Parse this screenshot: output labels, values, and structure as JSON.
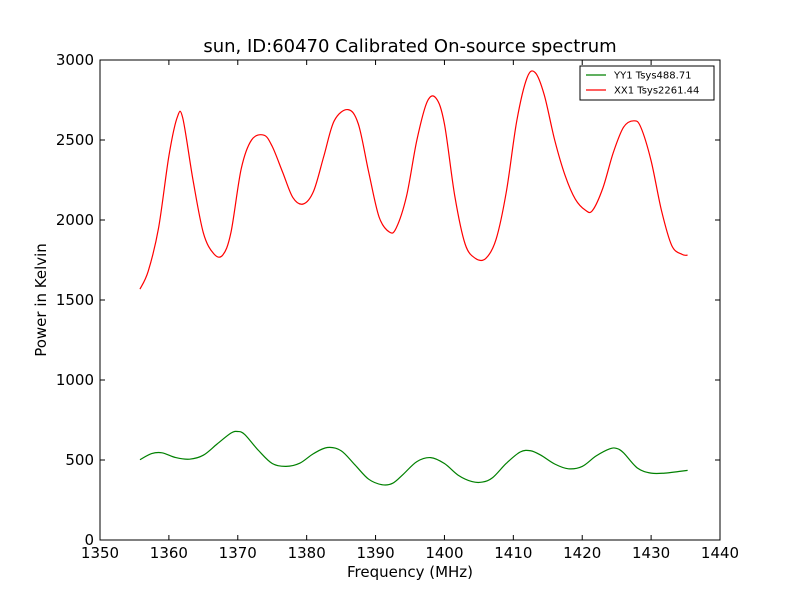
{
  "chart_data": {
    "type": "line",
    "title": "sun, ID:60470 Calibrated On-source spectrum",
    "xlabel": "Frequency (MHz)",
    "ylabel": "Power in Kelvin",
    "xlim": [
      1350,
      1440
    ],
    "ylim": [
      0,
      3000
    ],
    "xticks": [
      1350,
      1360,
      1370,
      1380,
      1390,
      1400,
      1410,
      1420,
      1430,
      1440
    ],
    "xtick_labels": [
      "1350",
      "1360",
      "1370",
      "1380",
      "1390",
      "1400",
      "1410",
      "1420",
      "1430",
      "1440"
    ],
    "yticks": [
      0,
      500,
      1000,
      1500,
      2000,
      2500,
      3000
    ],
    "ytick_labels": [
      "0",
      "500",
      "1000",
      "1500",
      "2000",
      "2500",
      "3000"
    ],
    "grid": false,
    "legend_position": "top-right",
    "series": [
      {
        "name": "YY1 Tsys488.71",
        "color": "#008000",
        "x": [
          1355.8,
          1357.5,
          1359,
          1361,
          1363,
          1365,
          1367,
          1369,
          1370,
          1371,
          1373,
          1375,
          1377,
          1379,
          1381,
          1383,
          1385,
          1387,
          1389,
          1391,
          1392.5,
          1394,
          1396,
          1398,
          1400,
          1402,
          1404,
          1405.5,
          1407,
          1409,
          1411,
          1412.5,
          1414,
          1416,
          1418,
          1420,
          1422,
          1424,
          1425,
          1426,
          1428,
          1430,
          1432,
          1434,
          1435.3
        ],
        "y": [
          502,
          540,
          545,
          515,
          505,
          530,
          600,
          668,
          678,
          660,
          560,
          478,
          460,
          480,
          540,
          578,
          558,
          470,
          380,
          345,
          355,
          410,
          490,
          515,
          478,
          405,
          365,
          362,
          390,
          480,
          550,
          558,
          530,
          475,
          445,
          460,
          525,
          570,
          572,
          545,
          450,
          418,
          418,
          428,
          435
        ]
      },
      {
        "name": "XX1 Tsys2261.44",
        "color": "#ff0000",
        "x": [
          1355.8,
          1357,
          1358.5,
          1360,
          1361.2,
          1362,
          1363.5,
          1365,
          1366.5,
          1367.8,
          1369,
          1370.5,
          1372,
          1373.8,
          1375,
          1376.5,
          1378,
          1379.5,
          1381,
          1382.5,
          1384,
          1386,
          1387.5,
          1389,
          1390.5,
          1392,
          1393,
          1394.5,
          1396,
          1397.5,
          1398.8,
          1400,
          1401.5,
          1403,
          1404.5,
          1406,
          1407.5,
          1409,
          1410.5,
          1412,
          1413.2,
          1414.5,
          1416,
          1417.5,
          1419,
          1420.5,
          1421.5,
          1423,
          1424.5,
          1426,
          1427.5,
          1428.5,
          1430,
          1431.5,
          1433,
          1434.5,
          1435.3
        ],
        "y": [
          1568,
          1680,
          1950,
          2400,
          2640,
          2640,
          2250,
          1920,
          1790,
          1780,
          1920,
          2320,
          2500,
          2530,
          2460,
          2300,
          2140,
          2100,
          2180,
          2400,
          2620,
          2690,
          2600,
          2300,
          2020,
          1925,
          1950,
          2150,
          2500,
          2740,
          2760,
          2600,
          2150,
          1850,
          1760,
          1760,
          1880,
          2180,
          2620,
          2890,
          2920,
          2780,
          2500,
          2280,
          2130,
          2060,
          2060,
          2200,
          2420,
          2580,
          2620,
          2580,
          2370,
          2060,
          1840,
          1785,
          1780
        ]
      }
    ]
  }
}
